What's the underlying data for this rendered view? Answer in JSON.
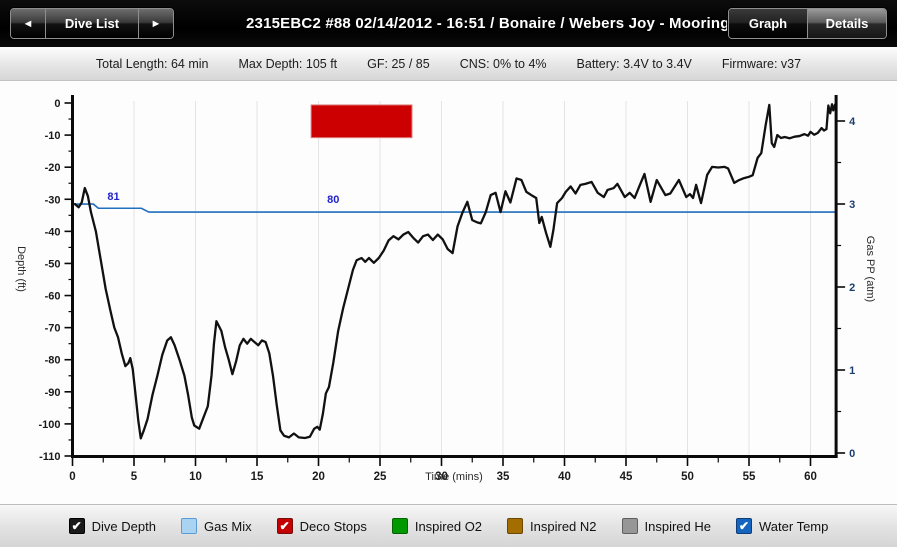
{
  "topbar": {
    "prev_arrow": "◄",
    "dive_list_label": "Dive List",
    "next_arrow": "►",
    "title": "2315EBC2 #88 02/14/2012 - 16:51  / Bonaire / Webers Joy - Mooring Entrance",
    "graph_label": "Graph",
    "details_label": "Details"
  },
  "stats": {
    "items": [
      "Total Length: 64 min",
      "Max Depth: 105 ft",
      "GF: 25 / 85",
      "CNS: 0% to 4%",
      "Battery: 3.4V to 3.4V",
      "Firmware: v37"
    ]
  },
  "legend": {
    "check_glyph": "✔",
    "items": [
      {
        "label": "Dive Depth",
        "slug": "dive-depth",
        "color": "#1a1a1a",
        "border": "#000000",
        "checked": true
      },
      {
        "label": "Gas Mix",
        "slug": "gas-mix",
        "color": "#a9d3f0",
        "border": "#5b9bd5",
        "checked": false
      },
      {
        "label": "Deco Stops",
        "slug": "deco-stops",
        "color": "#c40000",
        "border": "#7a0c0c",
        "checked": true
      },
      {
        "label": "Inspired O2",
        "slug": "inspired-o2",
        "color": "#009900",
        "border": "#046304",
        "checked": false
      },
      {
        "label": "Inspired N2",
        "slug": "inspired-n2",
        "color": "#a36d00",
        "border": "#6b4700",
        "checked": false
      },
      {
        "label": "Inspired He",
        "slug": "inspired-he",
        "color": "#969696",
        "border": "#5e5e5e",
        "checked": false
      },
      {
        "label": "Water Temp",
        "slug": "water-temp",
        "color": "#1565c0",
        "border": "#0c3e78",
        "checked": true
      }
    ]
  },
  "chart_data": {
    "type": "line",
    "xlabel": "Time (mins)",
    "ylabel_left": "Depth (ft)",
    "ylabel_right": "Gas PP (atm)",
    "x_range": [
      0,
      62
    ],
    "depth_range": [
      0,
      -110
    ],
    "gaspp_range": [
      0,
      4
    ],
    "depth_major_ticks": [
      0,
      -10,
      -20,
      -30,
      -40,
      -50,
      -60,
      -70,
      -80,
      -90,
      -100,
      -110
    ],
    "depth_minor_step": 5,
    "x_major_ticks": [
      0,
      5,
      10,
      15,
      20,
      25,
      30,
      35,
      40,
      45,
      50,
      55,
      60
    ],
    "x_minor_step": 2.5,
    "gaspp_major_ticks": [
      0,
      1,
      2,
      3,
      4
    ],
    "gaspp_minor_step": 0.5,
    "grid_x": [
      5,
      10,
      15,
      20,
      25,
      30,
      35,
      40,
      45,
      50,
      55,
      60
    ],
    "colors": {
      "depth_line": "#111111",
      "temp_line": "#1f6fbf",
      "deco": "#cc0000",
      "deco_edge": "#dd8080",
      "grid": "#e4e4e4",
      "axis": "#0a0a0a",
      "tick_label": "#1a1a1a",
      "gas_tick_label": "#1c3d6e",
      "temp_label": "#2222cc"
    },
    "deco_stops": {
      "t_start": 19.4,
      "t_end": 27.6,
      "depth_top": -0.6,
      "depth_bottom": -10.8
    },
    "water_temp": {
      "points": [
        [
          0.15,
          -31.5
        ],
        [
          1.7,
          -31.5
        ],
        [
          2.1,
          -32.8
        ],
        [
          5.6,
          -32.8
        ],
        [
          6.2,
          -34.0
        ],
        [
          62,
          -34.0
        ]
      ],
      "annotations": [
        {
          "text": "81",
          "t": 3.33,
          "depth": -30.2
        },
        {
          "text": "80",
          "t": 21.2,
          "depth": -31.2
        }
      ]
    },
    "dive_depth": {
      "points": [
        [
          0.2,
          -31.5
        ],
        [
          0.5,
          -32.5
        ],
        [
          0.75,
          -31
        ],
        [
          1.0,
          -26.5
        ],
        [
          1.25,
          -29
        ],
        [
          1.5,
          -34
        ],
        [
          1.9,
          -40
        ],
        [
          2.3,
          -49
        ],
        [
          2.7,
          -58
        ],
        [
          3.1,
          -65
        ],
        [
          3.4,
          -70
        ],
        [
          3.7,
          -73
        ],
        [
          4.0,
          -78
        ],
        [
          4.3,
          -82
        ],
        [
          4.55,
          -81
        ],
        [
          4.7,
          -79.5
        ],
        [
          4.9,
          -83
        ],
        [
          5.1,
          -90
        ],
        [
          5.35,
          -99
        ],
        [
          5.55,
          -104.5
        ],
        [
          5.8,
          -102
        ],
        [
          6.1,
          -98.5
        ],
        [
          6.5,
          -91
        ],
        [
          6.9,
          -85
        ],
        [
          7.3,
          -78.5
        ],
        [
          7.7,
          -74
        ],
        [
          8.0,
          -73
        ],
        [
          8.3,
          -75.5
        ],
        [
          8.7,
          -80
        ],
        [
          9.1,
          -85
        ],
        [
          9.4,
          -91
        ],
        [
          9.7,
          -98
        ],
        [
          9.9,
          -100.5
        ],
        [
          10.3,
          -101.5
        ],
        [
          10.6,
          -98.5
        ],
        [
          11.0,
          -94.5
        ],
        [
          11.3,
          -85
        ],
        [
          11.5,
          -75
        ],
        [
          11.7,
          -68
        ],
        [
          11.9,
          -69.5
        ],
        [
          12.1,
          -71
        ],
        [
          12.4,
          -76
        ],
        [
          12.7,
          -80
        ],
        [
          13.0,
          -84.5
        ],
        [
          13.3,
          -80.5
        ],
        [
          13.6,
          -75.5
        ],
        [
          13.9,
          -73.5
        ],
        [
          14.2,
          -75
        ],
        [
          14.5,
          -73.5
        ],
        [
          14.8,
          -74.5
        ],
        [
          15.1,
          -75.5
        ],
        [
          15.4,
          -74
        ],
        [
          15.7,
          -74.5
        ],
        [
          16.0,
          -78
        ],
        [
          16.3,
          -85
        ],
        [
          16.6,
          -94
        ],
        [
          16.9,
          -102
        ],
        [
          17.2,
          -103.7
        ],
        [
          17.6,
          -104.2
        ],
        [
          18.0,
          -103
        ],
        [
          18.4,
          -104.2
        ],
        [
          18.9,
          -104.4
        ],
        [
          19.3,
          -104
        ],
        [
          19.65,
          -101.5
        ],
        [
          19.9,
          -100.9
        ],
        [
          20.1,
          -101.8
        ],
        [
          20.35,
          -97
        ],
        [
          20.6,
          -90.5
        ],
        [
          20.85,
          -88.5
        ],
        [
          21.2,
          -81
        ],
        [
          21.6,
          -71
        ],
        [
          22.0,
          -64
        ],
        [
          22.4,
          -58
        ],
        [
          22.8,
          -52
        ],
        [
          23.1,
          -49
        ],
        [
          23.5,
          -48.3
        ],
        [
          23.8,
          -49.5
        ],
        [
          24.1,
          -48.3
        ],
        [
          24.5,
          -49.8
        ],
        [
          24.9,
          -48.3
        ],
        [
          25.3,
          -46
        ],
        [
          25.7,
          -42.8
        ],
        [
          26.1,
          -41.5
        ],
        [
          26.5,
          -42.5
        ],
        [
          26.9,
          -41
        ],
        [
          27.3,
          -40.2
        ],
        [
          27.7,
          -42
        ],
        [
          28.1,
          -43.5
        ],
        [
          28.5,
          -41.5
        ],
        [
          28.9,
          -41
        ],
        [
          29.3,
          -42.7
        ],
        [
          29.7,
          -41
        ],
        [
          30.1,
          -42.5
        ],
        [
          30.5,
          -45.5
        ],
        [
          30.9,
          -46.8
        ],
        [
          31.3,
          -38.5
        ],
        [
          31.7,
          -34.2
        ],
        [
          32.1,
          -30.8
        ],
        [
          32.5,
          -36.5
        ],
        [
          32.9,
          -37.2
        ],
        [
          33.2,
          -37.5
        ],
        [
          33.6,
          -34
        ],
        [
          34.0,
          -28.7
        ],
        [
          34.4,
          -28
        ],
        [
          34.8,
          -34
        ],
        [
          35.2,
          -27.5
        ],
        [
          35.6,
          -31
        ],
        [
          36.1,
          -23.5
        ],
        [
          36.5,
          -24
        ],
        [
          36.9,
          -27.7
        ],
        [
          37.3,
          -28.7
        ],
        [
          37.7,
          -29.6
        ],
        [
          37.95,
          -37.4
        ],
        [
          38.15,
          -35.5
        ],
        [
          38.5,
          -40.5
        ],
        [
          38.85,
          -44.8
        ],
        [
          39.1,
          -39.5
        ],
        [
          39.4,
          -31.2
        ],
        [
          39.8,
          -29.6
        ],
        [
          40.1,
          -27.7
        ],
        [
          40.5,
          -26
        ],
        [
          40.9,
          -28.2
        ],
        [
          41.3,
          -25.5
        ],
        [
          41.7,
          -25.2
        ],
        [
          42.2,
          -24.6
        ],
        [
          42.7,
          -28
        ],
        [
          43.2,
          -29.3
        ],
        [
          43.5,
          -27.1
        ],
        [
          44.0,
          -26.5
        ],
        [
          44.3,
          -25.2
        ],
        [
          44.9,
          -29.3
        ],
        [
          45.3,
          -28
        ],
        [
          45.7,
          -29.6
        ],
        [
          46.1,
          -25.8
        ],
        [
          46.5,
          -22.1
        ],
        [
          47.0,
          -30.8
        ],
        [
          47.5,
          -24
        ],
        [
          48.2,
          -28.7
        ],
        [
          48.6,
          -28.2
        ],
        [
          49.3,
          -24
        ],
        [
          49.9,
          -29.3
        ],
        [
          50.2,
          -28.4
        ],
        [
          50.45,
          -29.6
        ],
        [
          50.7,
          -25.5
        ],
        [
          51.1,
          -31.2
        ],
        [
          51.6,
          -22.4
        ],
        [
          52.0,
          -19.9
        ],
        [
          52.5,
          -20.1
        ],
        [
          53.0,
          -19.9
        ],
        [
          53.3,
          -20.4
        ],
        [
          53.8,
          -24.9
        ],
        [
          54.2,
          -24
        ],
        [
          54.6,
          -23.4
        ],
        [
          55.0,
          -23
        ],
        [
          55.3,
          -22.5
        ],
        [
          55.7,
          -17.1
        ],
        [
          56.0,
          -15.6
        ],
        [
          56.35,
          -7
        ],
        [
          56.65,
          -0.6
        ],
        [
          56.85,
          -12.5
        ],
        [
          57.05,
          -13.7
        ],
        [
          57.3,
          -10
        ],
        [
          57.6,
          -10.9
        ],
        [
          57.9,
          -10.6
        ],
        [
          58.3,
          -11
        ],
        [
          58.7,
          -10.5
        ],
        [
          59.1,
          -10.3
        ],
        [
          59.5,
          -9.7
        ],
        [
          59.8,
          -10.2
        ],
        [
          60.0,
          -9
        ],
        [
          60.3,
          -9.9
        ],
        [
          60.6,
          -9.3
        ],
        [
          60.9,
          -7.8
        ],
        [
          61.1,
          -8.6
        ],
        [
          61.3,
          -8.1
        ],
        [
          61.45,
          -0.8
        ],
        [
          61.6,
          -3.2
        ],
        [
          61.75,
          -0.4
        ],
        [
          61.85,
          -2.3
        ],
        [
          62.0,
          -0.5
        ]
      ]
    }
  }
}
